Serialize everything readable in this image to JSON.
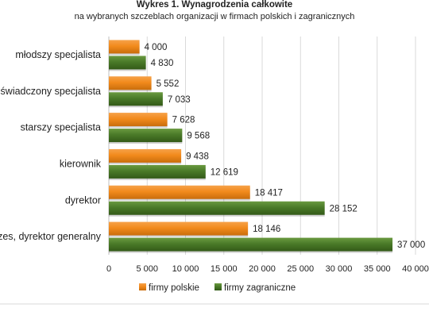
{
  "chart_data": {
    "type": "bar",
    "orientation": "horizontal",
    "title": "Wykres 1. Wynagrodzenia całkowite",
    "subtitle": "na wybranych szczeblach organizacji w firmach polskich i zagranicznych",
    "categories": [
      "młodszy specjalista",
      "doświadczony specjalista",
      "starszy specjalista",
      "kierownik",
      "dyrektor",
      "prezes, dyrektor generalny"
    ],
    "series": [
      {
        "name": "firmy polskie",
        "color": "#f28a1c",
        "values": [
          4000,
          5552,
          7628,
          9438,
          18417,
          18146
        ],
        "labels": [
          "4 000",
          "5 552",
          "7 628",
          "9 438",
          "18 417",
          "18 146"
        ]
      },
      {
        "name": "firmy zagraniczne",
        "color": "#4a7a28",
        "values": [
          4830,
          7033,
          9568,
          12619,
          28152,
          37000
        ],
        "labels": [
          "4 830",
          "7 033",
          "9 568",
          "12 619",
          "28 152",
          "37 000"
        ]
      }
    ],
    "xlim": [
      0,
      40000
    ],
    "xticks": [
      0,
      5000,
      10000,
      15000,
      20000,
      25000,
      30000,
      35000,
      40000
    ],
    "xtick_labels": [
      "0",
      "5 000",
      "10 000",
      "15 000",
      "20 000",
      "25 000",
      "30 000",
      "35 000",
      "40 000"
    ],
    "grid": true,
    "legend_position": "bottom"
  }
}
